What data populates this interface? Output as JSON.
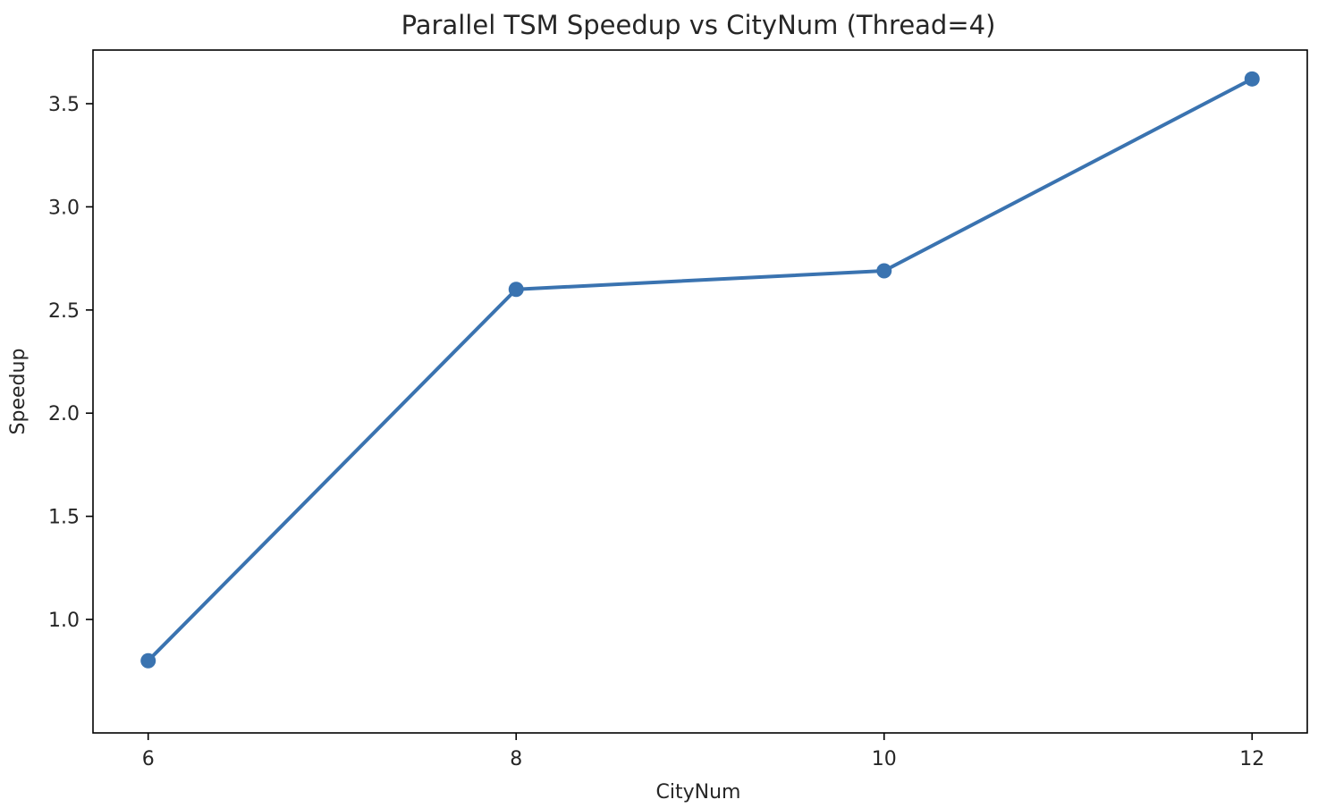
{
  "chart_data": {
    "type": "line",
    "title": "Parallel TSM Speedup vs CityNum (Thread=4)",
    "xlabel": "CityNum",
    "ylabel": "Speedup",
    "x": [
      6,
      8,
      10,
      12
    ],
    "series": [
      {
        "values": [
          0.8,
          2.6,
          2.69,
          3.62
        ],
        "color": "#3a73b0",
        "marker": "circle"
      }
    ],
    "xticks": [
      6,
      8,
      10,
      12
    ],
    "xtick_labels": [
      "6",
      "8",
      "10",
      "12"
    ],
    "yticks": [
      1.0,
      1.5,
      2.0,
      2.5,
      3.0,
      3.5
    ],
    "ytick_labels": [
      "1.0",
      "1.5",
      "2.0",
      "2.5",
      "3.0",
      "3.5"
    ],
    "xlim": [
      5.7,
      12.3
    ],
    "ylim": [
      0.45,
      3.76
    ],
    "grid": false,
    "legend": "none"
  }
}
